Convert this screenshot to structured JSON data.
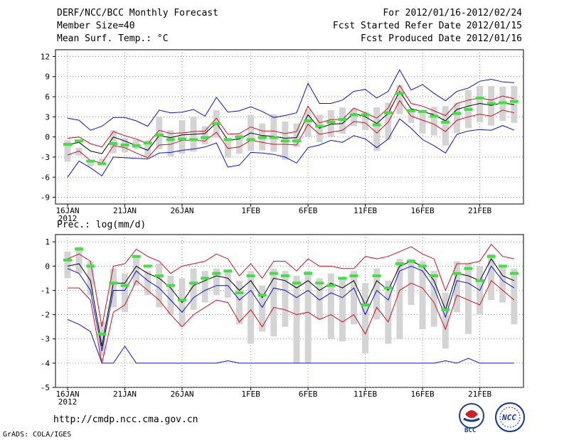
{
  "header": {
    "title": "DERF/NCC/BCC Monthly Forecast",
    "member_size": "Member Size=40",
    "variable": "Mean Surf. Temp.: °C",
    "period": "For 2012/01/16-2012/02/24",
    "started": "Fcst Started Refer Date 2012/01/15",
    "produced": "Fcst Produced Date 2012/01/16"
  },
  "footer": {
    "url": "http://cmdp.ncc.cma.gov.cn",
    "grads": "GrADS: COLA/IGES",
    "logo_bcc_label": "BCC",
    "logo_ncc_label": "NCC"
  },
  "colors": {
    "envelope": "#1010d0",
    "spread": "#d01020",
    "mean": "#000000",
    "box": "#d4d4d4",
    "obs": "#40e040",
    "grid": "#777777"
  },
  "chart_data": [
    {
      "type": "line",
      "title": "Mean Surf. Temp.: °C",
      "ylabel": "°C",
      "xlabel": "",
      "ylim": [
        -10,
        13
      ],
      "yticks": [
        12,
        9,
        6,
        3,
        0,
        -3,
        -6,
        -9
      ],
      "x": [
        1,
        2,
        3,
        4,
        5,
        6,
        7,
        8,
        9,
        10,
        11,
        12,
        13,
        14,
        15,
        16,
        17,
        18,
        19,
        20,
        21,
        22,
        23,
        24,
        25,
        26,
        27,
        28,
        29,
        30,
        31,
        32,
        33,
        34,
        35,
        36,
        37,
        38,
        39,
        40
      ],
      "xticks": [
        {
          "day": 1,
          "label": "16JAN"
        },
        {
          "day": 6,
          "label": "21JAN"
        },
        {
          "day": 11,
          "label": "26JAN"
        },
        {
          "day": 17,
          "label": "1FEB"
        },
        {
          "day": 22,
          "label": "6FEB"
        },
        {
          "day": 27,
          "label": "11FEB"
        },
        {
          "day": 32,
          "label": "16FEB"
        },
        {
          "day": 37,
          "label": "21FEB"
        }
      ],
      "year_label": "2012",
      "series": [
        {
          "name": "max",
          "values": [
            2.8,
            2.5,
            1.0,
            1.6,
            2.9,
            2.9,
            2.4,
            1.6,
            4.0,
            3.6,
            3.7,
            4.1,
            3.1,
            5.9,
            3.7,
            3.9,
            4.5,
            3.8,
            2.9,
            3.2,
            3.6,
            8.0,
            5.0,
            5.0,
            5.5,
            6.8,
            7.1,
            5.8,
            6.8,
            10.0,
            7.0,
            7.8,
            6.5,
            5.4,
            6.8,
            7.3,
            8.3,
            8.6,
            8.2,
            8.1
          ]
        },
        {
          "name": "spread_upper",
          "values": [
            -0.2,
            0.0,
            -1.0,
            -1.5,
            0.8,
            0.2,
            -0.3,
            -1.0,
            1.0,
            0.5,
            0.6,
            0.8,
            0.9,
            2.8,
            0.4,
            0.5,
            1.5,
            0.9,
            0.9,
            0.5,
            0.8,
            4.6,
            2.1,
            2.6,
            2.6,
            4.3,
            3.6,
            2.8,
            4.3,
            7.7,
            5.0,
            4.6,
            3.9,
            3.2,
            5.0,
            5.5,
            5.8,
            5.5,
            6.1,
            5.7
          ]
        },
        {
          "name": "mean",
          "values": [
            -1.2,
            -0.8,
            -2.1,
            -2.5,
            0.0,
            -0.6,
            -1.3,
            -2.0,
            0.2,
            -0.1,
            0.3,
            0.4,
            0.5,
            2.1,
            -0.5,
            -0.3,
            0.6,
            0.2,
            0.1,
            -0.2,
            -0.1,
            3.3,
            1.3,
            1.9,
            2.0,
            3.5,
            3.0,
            2.0,
            3.5,
            6.8,
            4.2,
            3.8,
            3.3,
            2.4,
            4.1,
            4.6,
            5.0,
            4.7,
            5.1,
            4.8
          ]
        },
        {
          "name": "spread_lower",
          "values": [
            -2.7,
            -2.1,
            -3.5,
            -3.9,
            -1.3,
            -1.6,
            -2.4,
            -3.1,
            -1.2,
            -1.1,
            -0.5,
            -0.5,
            -0.6,
            0.7,
            -1.7,
            -1.5,
            -0.5,
            -0.8,
            -1.1,
            -1.1,
            -1.2,
            1.9,
            0.4,
            0.7,
            1.0,
            2.3,
            2.1,
            0.6,
            2.2,
            5.4,
            3.1,
            2.5,
            1.9,
            0.8,
            2.5,
            3.0,
            3.4,
            3.1,
            4.0,
            3.6
          ]
        },
        {
          "name": "min",
          "values": [
            -6.0,
            -3.6,
            -4.6,
            -5.8,
            -3.0,
            -3.1,
            -3.2,
            -3.3,
            -2.4,
            -2.3,
            -2.0,
            -1.8,
            -1.5,
            -0.9,
            -4.5,
            -4.2,
            -2.3,
            -2.4,
            -2.6,
            -3.0,
            -3.9,
            -1.6,
            -1.2,
            -0.5,
            -0.8,
            0.2,
            -0.3,
            -1.6,
            -0.3,
            2.7,
            1.3,
            -0.4,
            -1.3,
            -2.4,
            0.4,
            0.9,
            1.1,
            1.0,
            1.7,
            1.0
          ]
        },
        {
          "name": "box_high",
          "values": [
            -0.5,
            -1.6,
            -3.6,
            -3.2,
            1.0,
            -0.2,
            -0.4,
            -0.5,
            3.0,
            1.0,
            2.5,
            3.0,
            1.6,
            4.0,
            -0.5,
            0.5,
            3.3,
            2.0,
            3.4,
            2.3,
            2.0,
            4.1,
            3.3,
            4.0,
            4.4,
            4.2,
            3.8,
            4.4,
            5.1,
            7.7,
            4.2,
            3.7,
            4.5,
            4.6,
            5.0,
            7.0,
            7.6,
            7.6,
            7.5,
            7.6
          ]
        },
        {
          "name": "box_low",
          "values": [
            -3.7,
            -2.8,
            -4.4,
            -4.0,
            -2.4,
            -2.3,
            -1.8,
            -3.0,
            -1.8,
            -2.9,
            -2.5,
            -2.2,
            -1.1,
            -0.1,
            -3.1,
            -2.5,
            -2.1,
            -2.0,
            -2.2,
            -3.4,
            -1.5,
            0.0,
            -0.8,
            0.0,
            0.5,
            1.6,
            1.0,
            -2.1,
            -0.4,
            3.4,
            2.1,
            0.5,
            0.2,
            -1.3,
            0.6,
            1.3,
            2.2,
            1.7,
            2.4,
            2.1
          ]
        },
        {
          "name": "observed",
          "values": [
            -1.1,
            -0.6,
            -3.6,
            -4.0,
            -1.0,
            -1.2,
            -1.3,
            -0.9,
            0.3,
            -0.4,
            -0.3,
            -0.4,
            -0.1,
            2.0,
            -0.4,
            0.0,
            -0.4,
            -0.1,
            -0.1,
            -0.6,
            -0.6,
            2.4,
            1.6,
            2.2,
            2.6,
            3.3,
            3.3,
            1.8,
            3.6,
            6.5,
            3.9,
            3.8,
            3.1,
            2.2,
            3.5,
            4.1,
            5.8,
            5.0,
            5.1,
            5.3
          ]
        }
      ]
    },
    {
      "type": "line",
      "title": "Prec.: log(mm/d)",
      "ylabel": "log(mm/d)",
      "xlabel": "",
      "ylim": [
        -5,
        1.3
      ],
      "yticks": [
        1,
        0,
        -1,
        -2,
        -3,
        -4,
        -5
      ],
      "x": [
        1,
        2,
        3,
        4,
        5,
        6,
        7,
        8,
        9,
        10,
        11,
        12,
        13,
        14,
        15,
        16,
        17,
        18,
        19,
        20,
        21,
        22,
        23,
        24,
        25,
        26,
        27,
        28,
        29,
        30,
        31,
        32,
        33,
        34,
        35,
        36,
        37,
        38,
        39,
        40
      ],
      "xticks": [
        {
          "day": 1,
          "label": "16JAN"
        },
        {
          "day": 6,
          "label": "21JAN"
        },
        {
          "day": 11,
          "label": "26JAN"
        },
        {
          "day": 17,
          "label": "1FEB"
        },
        {
          "day": 22,
          "label": "6FEB"
        },
        {
          "day": 27,
          "label": "11FEB"
        },
        {
          "day": 32,
          "label": "16FEB"
        },
        {
          "day": 37,
          "label": "21FEB"
        }
      ],
      "year_label": "2012",
      "series": [
        {
          "name": "max",
          "values": [
            -2.2,
            -2.4,
            -2.7,
            -4.0,
            -4.0,
            -3.3,
            -4.0,
            -4.0,
            -4.0,
            -4.0,
            -4.0,
            -4.0,
            -4.0,
            -4.0,
            -3.9,
            -4.0,
            -4.0,
            -4.0,
            -4.0,
            -4.0,
            -4.0,
            -4.0,
            -4.0,
            -4.0,
            -4.0,
            -4.0,
            -4.0,
            -4.0,
            -4.0,
            -4.0,
            -4.0,
            -4.0,
            -4.0,
            -3.9,
            -4.0,
            -3.8,
            -4.0,
            -4.0,
            -4.0,
            -4.0
          ]
        },
        {
          "name": "upper",
          "values": [
            0.3,
            0.5,
            0.2,
            -2.5,
            0.0,
            0.1,
            0.7,
            0.4,
            0.2,
            -0.3,
            0.0,
            0.1,
            0.2,
            0.5,
            0.3,
            -0.4,
            0.1,
            -0.5,
            0.2,
            0.2,
            -0.2,
            0.3,
            0.0,
            0.0,
            -0.1,
            -0.1,
            0.4,
            0.3,
            0.4,
            0.6,
            0.8,
            0.5,
            0.3,
            -1.0,
            0.1,
            0.1,
            0.2,
            0.9,
            0.4,
            0.3
          ]
        },
        {
          "name": "mean",
          "values": [
            0.0,
            0.1,
            -0.6,
            -3.3,
            -0.7,
            -0.7,
            0.0,
            -0.3,
            -0.5,
            -0.9,
            -1.5,
            -0.8,
            -0.6,
            -0.4,
            -0.5,
            -1.0,
            -0.6,
            -1.3,
            -0.5,
            -0.6,
            -0.9,
            -0.6,
            -1.0,
            -0.7,
            -0.9,
            -0.6,
            -1.6,
            -0.6,
            -1.0,
            0.0,
            0.2,
            0.0,
            -0.6,
            -1.8,
            -0.3,
            -0.4,
            -0.6,
            0.3,
            -0.4,
            -0.6
          ]
        },
        {
          "name": "lower",
          "values": [
            -0.9,
            -0.9,
            -1.4,
            -4.0,
            -1.9,
            -1.6,
            -0.6,
            -1.0,
            -1.4,
            -2.0,
            -2.5,
            -2.0,
            -1.7,
            -1.4,
            -1.5,
            -2.3,
            -1.8,
            -2.5,
            -1.7,
            -1.8,
            -2.0,
            -1.9,
            -2.2,
            -2.0,
            -2.3,
            -2.0,
            -2.8,
            -1.7,
            -2.3,
            -1.0,
            -0.7,
            -0.9,
            -1.5,
            -2.6,
            -1.2,
            -1.4,
            -1.6,
            -0.6,
            -1.0,
            -1.4
          ]
        },
        {
          "name": "min",
          "values": [
            -0.1,
            -0.3,
            -1.0,
            -3.5,
            -1.0,
            -1.0,
            -0.2,
            -0.6,
            -0.9,
            -1.4,
            -1.9,
            -1.3,
            -1.0,
            -0.8,
            -0.8,
            -1.4,
            -1.0,
            -1.7,
            -0.9,
            -1.0,
            -1.3,
            -1.0,
            -1.4,
            -1.1,
            -1.3,
            -0.9,
            -2.0,
            -1.0,
            -1.4,
            -0.2,
            0.0,
            -0.2,
            -0.9,
            -2.1,
            -0.6,
            -0.7,
            -1.0,
            0.0,
            -0.6,
            -0.9
          ]
        },
        {
          "name": "box_high",
          "values": [
            0.6,
            0.8,
            0.2,
            -2.3,
            -0.1,
            -0.3,
            0.4,
            -0.2,
            0.1,
            -0.4,
            -0.5,
            -0.1,
            -0.2,
            -0.1,
            -0.2,
            -0.6,
            -0.2,
            -0.8,
            -0.1,
            -0.2,
            -0.4,
            -0.2,
            -0.5,
            -0.3,
            -0.5,
            -0.2,
            -0.7,
            -0.1,
            -0.6,
            0.3,
            0.3,
            0.2,
            -0.2,
            -1.1,
            0.2,
            0.1,
            0.0,
            0.5,
            0.0,
            -0.1
          ]
        },
        {
          "name": "box_low",
          "values": [
            -0.5,
            -0.3,
            -1.2,
            -3.7,
            -1.7,
            -1.9,
            -0.8,
            -1.2,
            -1.7,
            -2.0,
            -2.5,
            -1.8,
            -1.5,
            -1.2,
            -1.3,
            -2.4,
            -3.2,
            -2.7,
            -2.9,
            -2.5,
            -4.0,
            -4.0,
            -2.2,
            -3.0,
            -3.1,
            -2.4,
            -3.6,
            -2.2,
            -3.2,
            -3.0,
            -1.6,
            -2.6,
            -2.5,
            -3.4,
            -1.9,
            -2.8,
            -2.0,
            -1.4,
            -1.5,
            -2.4
          ]
        },
        {
          "name": "observed",
          "values": [
            0.25,
            0.7,
            0.0,
            -2.8,
            -0.7,
            -0.8,
            0.4,
            0.0,
            -0.4,
            -0.8,
            -1.4,
            -0.7,
            -0.5,
            -0.3,
            -0.2,
            -1.1,
            -0.4,
            -1.2,
            -0.3,
            -0.4,
            -0.7,
            -0.3,
            -0.7,
            -0.8,
            -0.5,
            -0.4,
            -1.6,
            -0.4,
            -0.9,
            0.1,
            0.2,
            0.0,
            -0.4,
            -1.8,
            -0.3,
            -0.1,
            -0.6,
            0.4,
            0.0,
            -0.3
          ]
        }
      ]
    }
  ]
}
